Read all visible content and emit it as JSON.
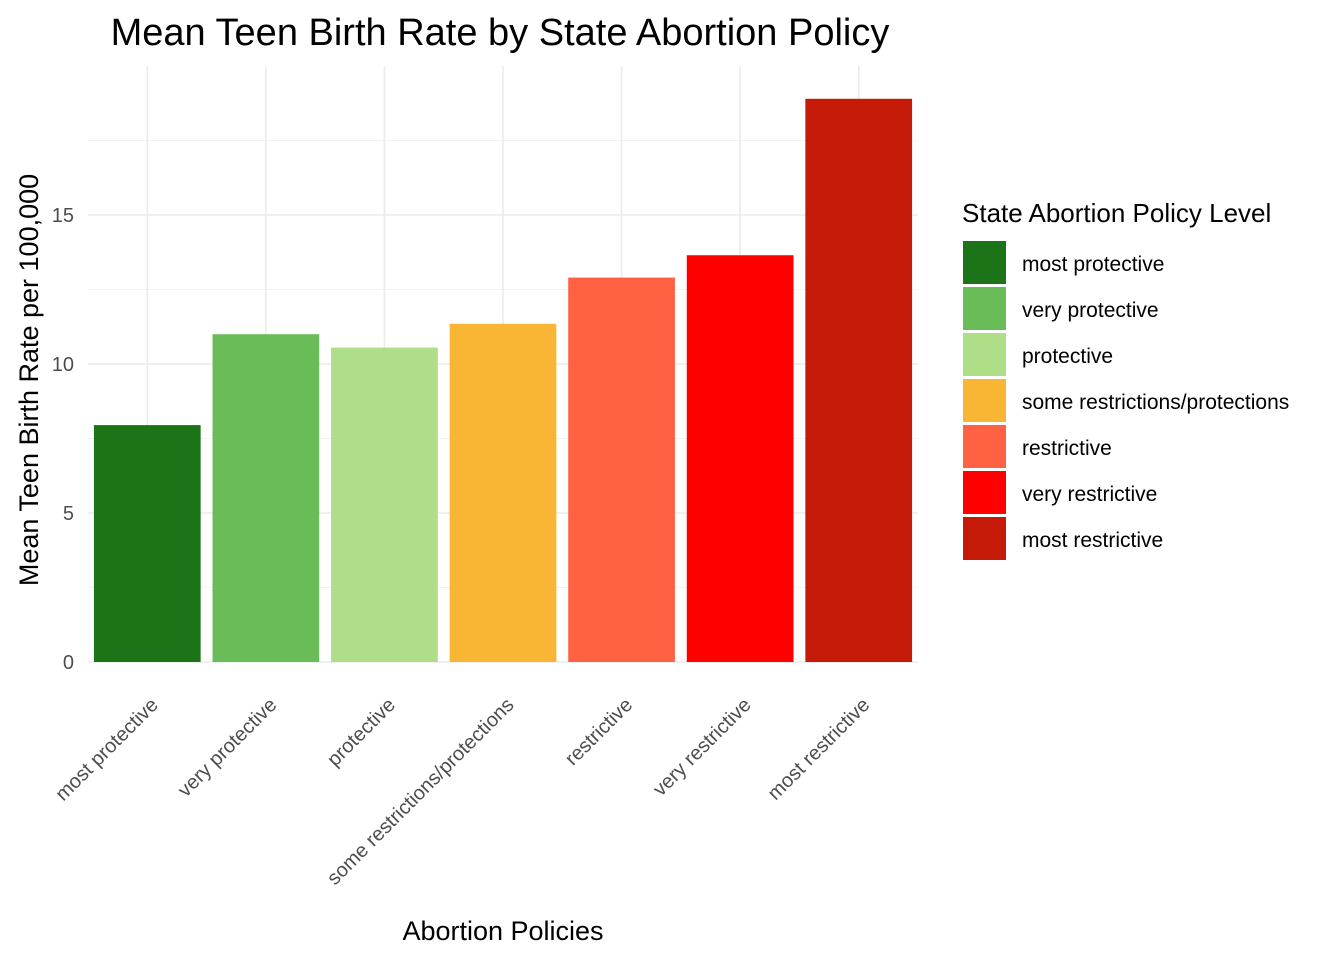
{
  "chart_data": {
    "type": "bar",
    "title": "Mean Teen Birth Rate by State Abortion Policy",
    "xlabel": "Abortion Policies",
    "ylabel": "Mean Teen Birth Rate per 100,000",
    "categories": [
      "most protective",
      "very protective",
      "protective",
      "some restrictions/protections",
      "restrictive",
      "very restrictive",
      "most restrictive"
    ],
    "values": [
      7.95,
      11.0,
      10.55,
      11.35,
      12.9,
      13.65,
      18.9
    ],
    "colors": [
      "#1d7318",
      "#69bc57",
      "#aede88",
      "#f9b534",
      "#ff6143",
      "#ff0000",
      "#c41a07"
    ],
    "ylim": [
      0,
      20
    ],
    "yticks": [
      0,
      5,
      10,
      15
    ],
    "grid": true,
    "legend": {
      "title": "State Abortion Policy Level",
      "placement": "right",
      "entries": [
        "most protective",
        "very protective",
        "protective",
        "some restrictions/protections",
        "restrictive",
        "very restrictive",
        "most restrictive"
      ]
    }
  }
}
